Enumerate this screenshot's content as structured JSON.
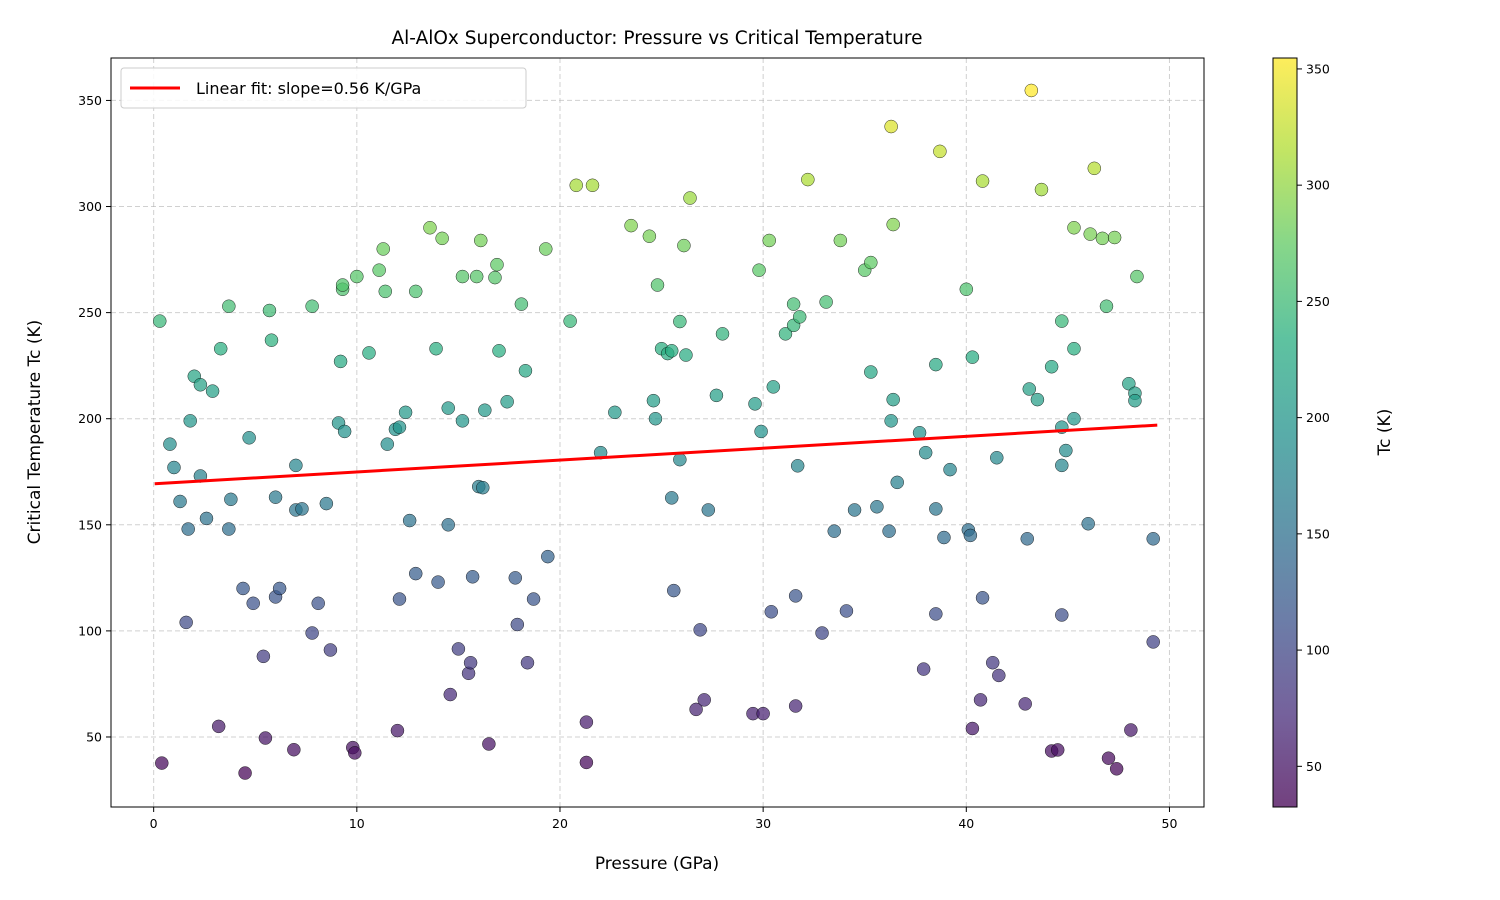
{
  "chart_data": {
    "type": "scatter",
    "title": "Al-AlOx Superconductor: Pressure vs Critical Temperature",
    "xlabel": "Pressure (GPa)",
    "ylabel": "Critical Temperature Tc (K)",
    "xlim": [
      -2.1,
      51.7
    ],
    "ylim": [
      17,
      370
    ],
    "xticks": [
      0,
      10,
      20,
      30,
      40,
      50
    ],
    "yticks": [
      50,
      100,
      150,
      200,
      250,
      300,
      350
    ],
    "grid": true,
    "grid_style": "dashed",
    "legend_position": "top-left",
    "colormap": "viridis",
    "color_by": "Tc",
    "colorbar": {
      "label": "Tc (K)",
      "range": [
        32.5,
        354.7
      ],
      "ticks": [
        50,
        100,
        150,
        200,
        250,
        300,
        350
      ]
    },
    "fit": {
      "label": "Linear fit: slope=0.56 K/GPa",
      "slope": 0.56,
      "intercept": 169.3,
      "x_range": [
        0.05,
        49.4
      ],
      "color": "#ff0000"
    },
    "points": [
      [
        0.3,
        246
      ],
      [
        0.4,
        37.7
      ],
      [
        0.8,
        188
      ],
      [
        1.0,
        177
      ],
      [
        1.3,
        161
      ],
      [
        1.6,
        104
      ],
      [
        1.7,
        148
      ],
      [
        1.8,
        199
      ],
      [
        2.0,
        220
      ],
      [
        2.3,
        216
      ],
      [
        2.3,
        173
      ],
      [
        2.6,
        153
      ],
      [
        2.9,
        213
      ],
      [
        3.2,
        55
      ],
      [
        3.3,
        233
      ],
      [
        3.7,
        253
      ],
      [
        3.7,
        148
      ],
      [
        3.8,
        162
      ],
      [
        4.4,
        120
      ],
      [
        4.5,
        33
      ],
      [
        4.7,
        191
      ],
      [
        4.9,
        113
      ],
      [
        5.4,
        88
      ],
      [
        5.5,
        49.5
      ],
      [
        5.7,
        251
      ],
      [
        5.8,
        237
      ],
      [
        6.0,
        163
      ],
      [
        6.0,
        116
      ],
      [
        6.2,
        120
      ],
      [
        6.9,
        44
      ],
      [
        7.0,
        178
      ],
      [
        7.0,
        157
      ],
      [
        7.3,
        157.5
      ],
      [
        7.8,
        253
      ],
      [
        7.8,
        99
      ],
      [
        8.1,
        113
      ],
      [
        8.5,
        160
      ],
      [
        8.7,
        91
      ],
      [
        9.1,
        198
      ],
      [
        9.2,
        227
      ],
      [
        9.3,
        261
      ],
      [
        9.3,
        263
      ],
      [
        9.4,
        194
      ],
      [
        9.8,
        45
      ],
      [
        9.9,
        42.5
      ],
      [
        10.0,
        267
      ],
      [
        10.6,
        231
      ],
      [
        11.1,
        270
      ],
      [
        11.3,
        280
      ],
      [
        11.4,
        260
      ],
      [
        11.5,
        188
      ],
      [
        11.9,
        195
      ],
      [
        12.1,
        196
      ],
      [
        12.0,
        53
      ],
      [
        12.1,
        115
      ],
      [
        12.4,
        203
      ],
      [
        12.6,
        152
      ],
      [
        12.9,
        260
      ],
      [
        12.9,
        127
      ],
      [
        13.6,
        290
      ],
      [
        13.9,
        233
      ],
      [
        14.0,
        123
      ],
      [
        14.2,
        285
      ],
      [
        14.5,
        150
      ],
      [
        14.5,
        205
      ],
      [
        14.6,
        70
      ],
      [
        15.0,
        91.5
      ],
      [
        15.2,
        267
      ],
      [
        15.2,
        199
      ],
      [
        15.5,
        80
      ],
      [
        15.6,
        85
      ],
      [
        15.7,
        125.5
      ],
      [
        15.9,
        267
      ],
      [
        16.0,
        168
      ],
      [
        16.1,
        284
      ],
      [
        16.2,
        167.5
      ],
      [
        16.3,
        204
      ],
      [
        16.5,
        46.7
      ],
      [
        16.8,
        266.5
      ],
      [
        16.9,
        272.6
      ],
      [
        17.0,
        232
      ],
      [
        17.4,
        208
      ],
      [
        17.8,
        125
      ],
      [
        17.9,
        103
      ],
      [
        18.1,
        254
      ],
      [
        18.3,
        222.6
      ],
      [
        18.4,
        85
      ],
      [
        18.7,
        115
      ],
      [
        19.3,
        280
      ],
      [
        19.4,
        135
      ],
      [
        20.5,
        246
      ],
      [
        20.8,
        310
      ],
      [
        21.3,
        57
      ],
      [
        21.3,
        38
      ],
      [
        21.6,
        310
      ],
      [
        22.0,
        184
      ],
      [
        22.7,
        203
      ],
      [
        23.5,
        291
      ],
      [
        24.4,
        286
      ],
      [
        24.6,
        208.5
      ],
      [
        24.7,
        200
      ],
      [
        24.8,
        263
      ],
      [
        25.0,
        233
      ],
      [
        25.3,
        230.7
      ],
      [
        25.5,
        232
      ],
      [
        25.5,
        162.7
      ],
      [
        25.6,
        119
      ],
      [
        25.9,
        245.8
      ],
      [
        25.9,
        180.7
      ],
      [
        26.1,
        281.6
      ],
      [
        26.2,
        230
      ],
      [
        26.4,
        304
      ],
      [
        26.7,
        63
      ],
      [
        26.9,
        100.5
      ],
      [
        27.1,
        67.5
      ],
      [
        27.3,
        157
      ],
      [
        27.7,
        211
      ],
      [
        28.0,
        240
      ],
      [
        29.5,
        61
      ],
      [
        29.6,
        207
      ],
      [
        29.8,
        270
      ],
      [
        29.9,
        194
      ],
      [
        30.0,
        61
      ],
      [
        30.3,
        284
      ],
      [
        30.4,
        109
      ],
      [
        30.5,
        215
      ],
      [
        31.1,
        240
      ],
      [
        31.5,
        254
      ],
      [
        31.5,
        244
      ],
      [
        31.6,
        64.6
      ],
      [
        31.6,
        116.5
      ],
      [
        31.7,
        177.8
      ],
      [
        31.8,
        248
      ],
      [
        32.2,
        312.7
      ],
      [
        32.9,
        99
      ],
      [
        33.1,
        255
      ],
      [
        33.5,
        147
      ],
      [
        33.8,
        284
      ],
      [
        34.1,
        109.4
      ],
      [
        34.5,
        157
      ],
      [
        35.0,
        270
      ],
      [
        35.3,
        273.6
      ],
      [
        35.3,
        222
      ],
      [
        35.6,
        158.5
      ],
      [
        36.2,
        147
      ],
      [
        36.3,
        199
      ],
      [
        36.3,
        337.7
      ],
      [
        36.4,
        209
      ],
      [
        36.4,
        291.5
      ],
      [
        36.6,
        170
      ],
      [
        37.7,
        193.4
      ],
      [
        37.9,
        82
      ],
      [
        38.0,
        184
      ],
      [
        38.5,
        225.5
      ],
      [
        38.5,
        157.5
      ],
      [
        38.5,
        108
      ],
      [
        38.7,
        326
      ],
      [
        38.9,
        144
      ],
      [
        39.2,
        176
      ],
      [
        40.0,
        261
      ],
      [
        40.1,
        147.6
      ],
      [
        40.2,
        145
      ],
      [
        40.3,
        229
      ],
      [
        40.3,
        54
      ],
      [
        40.7,
        67.5
      ],
      [
        40.8,
        115.6
      ],
      [
        40.8,
        312
      ],
      [
        41.3,
        85
      ],
      [
        41.5,
        181.6
      ],
      [
        41.6,
        79
      ],
      [
        43.0,
        143.4
      ],
      [
        42.9,
        65.6
      ],
      [
        43.1,
        214
      ],
      [
        43.2,
        354.7
      ],
      [
        43.5,
        209
      ],
      [
        43.7,
        308
      ],
      [
        44.2,
        224.5
      ],
      [
        44.2,
        43.4
      ],
      [
        44.5,
        43.9
      ],
      [
        44.7,
        107.5
      ],
      [
        44.7,
        196
      ],
      [
        44.7,
        246
      ],
      [
        44.7,
        178
      ],
      [
        44.9,
        185
      ],
      [
        45.3,
        290
      ],
      [
        45.3,
        233
      ],
      [
        45.3,
        200
      ],
      [
        46.0,
        150.5
      ],
      [
        46.1,
        287
      ],
      [
        46.3,
        318
      ],
      [
        46.7,
        285
      ],
      [
        46.9,
        253
      ],
      [
        47.0,
        40
      ],
      [
        47.3,
        285.4
      ],
      [
        47.4,
        35
      ],
      [
        48.0,
        216.5
      ],
      [
        48.1,
        53.3
      ],
      [
        48.3,
        212
      ],
      [
        48.3,
        208.5
      ],
      [
        48.4,
        267
      ],
      [
        49.2,
        143.4
      ],
      [
        49.2,
        94.8
      ]
    ]
  }
}
